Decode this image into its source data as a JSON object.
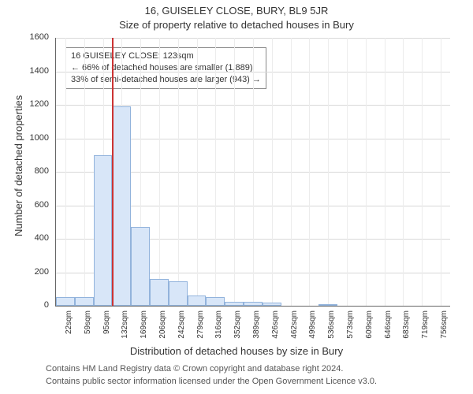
{
  "chart": {
    "type": "histogram",
    "title_main": "16, GUISELEY CLOSE, BURY, BL9 5JR",
    "title_sub": "Size of property relative to detached houses in Bury",
    "ylabel": "Number of detached properties",
    "xlabel": "Distribution of detached houses by size in Bury",
    "ylim": [
      0,
      1600
    ],
    "ytick_step": 200,
    "x_categories": [
      "22sqm",
      "59sqm",
      "95sqm",
      "132sqm",
      "169sqm",
      "206sqm",
      "242sqm",
      "279sqm",
      "316sqm",
      "352sqm",
      "389sqm",
      "426sqm",
      "462sqm",
      "499sqm",
      "536sqm",
      "573sqm",
      "609sqm",
      "646sqm",
      "683sqm",
      "719sqm",
      "756sqm"
    ],
    "bin_values": [
      50,
      50,
      900,
      1190,
      470,
      160,
      145,
      60,
      50,
      25,
      25,
      20,
      0,
      0,
      5,
      0,
      0,
      0,
      0,
      0,
      0
    ],
    "bar_fill": "#d8e6f8",
    "bar_border": "#92b3dc",
    "grid_color": "#d8d8d8",
    "axis_color": "#666666",
    "background": "#ffffff",
    "marker_color": "#cc3333",
    "marker_at_category_index": 3,
    "marker_fraction_into_bin": 0.0,
    "annotation": {
      "line1": "16 GUISELEY CLOSE: 123sqm",
      "line2": "← 66% of detached houses are smaller (1,889)",
      "line3": "33% of semi-detached houses are larger (943) →"
    },
    "footer_line1": "Contains HM Land Registry data © Crown copyright and database right 2024.",
    "footer_line2": "Contains public sector information licensed under the Open Government Licence v3.0.",
    "title_fontsize": 13,
    "label_fontsize": 13,
    "tick_fontsize": 11,
    "xtick_fontsize": 10,
    "annot_fontsize": 11,
    "footer_fontsize": 11
  }
}
